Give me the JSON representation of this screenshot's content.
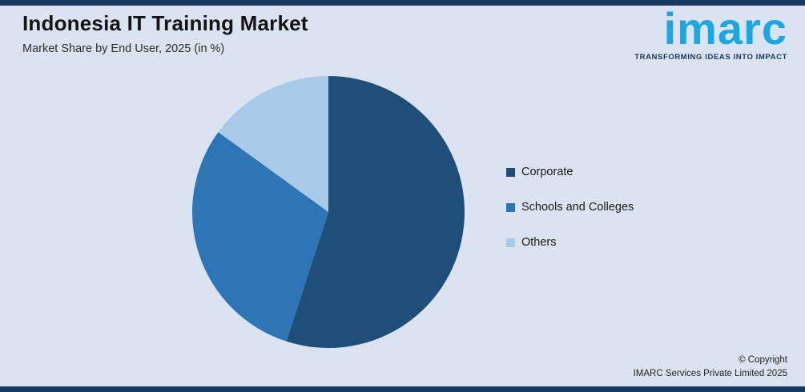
{
  "header": {
    "title": "Indonesia IT Training Market",
    "subtitle": "Market Share by End User, 2025 (in %)"
  },
  "logo": {
    "wordmark": "imarc",
    "tagline": "TRANSFORMING IDEAS INTO IMPACT",
    "brand_color": "#1da7e0",
    "tagline_color": "#1b3764"
  },
  "chart_data": {
    "type": "pie",
    "title": "Indonesia IT Training Market",
    "subtitle": "Market Share by End User, 2025 (in %)",
    "unit": "%",
    "start_angle_deg": 0,
    "direction": "clockwise",
    "legend_position": "right",
    "slices": [
      {
        "label": "Corporate",
        "value": 55,
        "color": "#1f4e79"
      },
      {
        "label": "Schools and Colleges",
        "value": 30,
        "color": "#2e75b6"
      },
      {
        "label": "Others",
        "value": 15,
        "color": "#a9c9e9"
      }
    ]
  },
  "footer": {
    "copyright_line1": "© Copyright",
    "copyright_line2": "IMARC Services Private Limited 2025"
  },
  "theme": {
    "background": "#dbe3f1",
    "bar_color": "#1b3764"
  }
}
